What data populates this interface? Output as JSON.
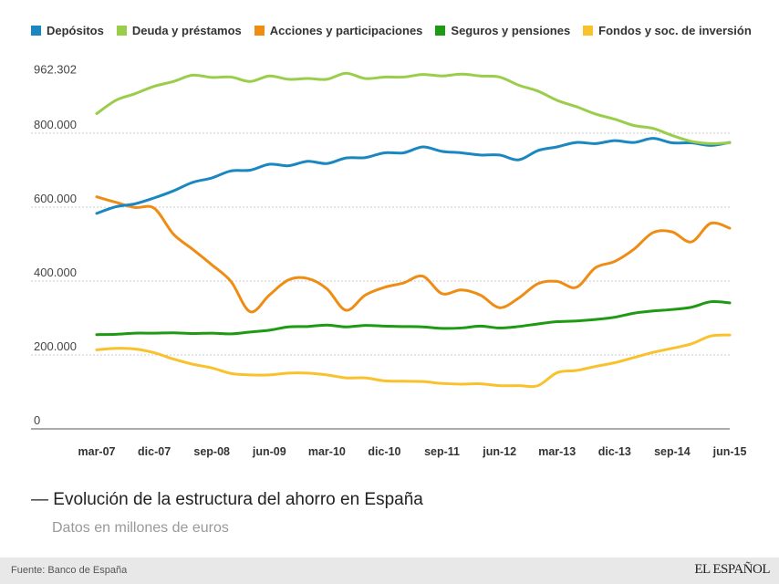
{
  "chart_data": {
    "type": "line",
    "title": "Evolución de la estructura del ahorro en España",
    "subtitle": "Datos en millones de euros",
    "source": "Fuente: Banco de España",
    "logo": "EL ESPAÑOL",
    "legend_position": "top",
    "grid": true,
    "ylim": [
      0,
      962302
    ],
    "y_ticks": [
      0,
      200000,
      400000,
      600000,
      800000,
      962302
    ],
    "y_tick_labels": [
      "0",
      "200.000",
      "400.000",
      "600.000",
      "800.000",
      "962.302"
    ],
    "x_tick_labels": [
      "mar-07",
      "dic-07",
      "sep-08",
      "jun-09",
      "mar-10",
      "dic-10",
      "sep-11",
      "jun-12",
      "mar-13",
      "dic-13",
      "sep-14",
      "jun-15"
    ],
    "x": [
      "mar-07",
      "jun-07",
      "sep-07",
      "dic-07",
      "mar-08",
      "jun-08",
      "sep-08",
      "dic-08",
      "mar-09",
      "jun-09",
      "sep-09",
      "dic-09",
      "mar-10",
      "jun-10",
      "sep-10",
      "dic-10",
      "mar-11",
      "jun-11",
      "sep-11",
      "dic-11",
      "mar-12",
      "jun-12",
      "sep-12",
      "dic-12",
      "mar-13",
      "jun-13",
      "sep-13",
      "dic-13",
      "mar-14",
      "jun-14",
      "sep-14",
      "dic-14",
      "mar-15",
      "jun-15"
    ],
    "series": [
      {
        "name": "Depósitos",
        "color": "#1a87c0",
        "values": [
          583000,
          601000,
          609000,
          625000,
          644000,
          667000,
          679000,
          698000,
          700000,
          716000,
          712000,
          724000,
          718000,
          733000,
          734000,
          747000,
          747000,
          763000,
          751000,
          747000,
          741000,
          741000,
          728000,
          753000,
          763000,
          775000,
          772000,
          780000,
          775000,
          786000,
          774000,
          774000,
          767000,
          775000
        ]
      },
      {
        "name": "Deuda y préstamos",
        "color": "#9acd4a",
        "values": [
          853000,
          889000,
          907000,
          927000,
          940000,
          957000,
          951000,
          952000,
          940000,
          955000,
          946000,
          948000,
          946000,
          962302,
          948000,
          952000,
          952000,
          959000,
          955000,
          960000,
          955000,
          952000,
          930000,
          914000,
          889000,
          872000,
          852000,
          838000,
          821000,
          813000,
          794000,
          778000,
          772000,
          774000
        ]
      },
      {
        "name": "Acciones y participaciones",
        "color": "#ef8c14",
        "values": [
          628000,
          613000,
          599000,
          597000,
          527000,
          486000,
          444000,
          399000,
          317000,
          362000,
          403000,
          407000,
          379000,
          321000,
          362000,
          383000,
          395000,
          413000,
          366000,
          376000,
          362000,
          328000,
          354000,
          393000,
          399000,
          383000,
          436000,
          453000,
          486000,
          531000,
          533000,
          506000,
          556000,
          543000
        ]
      },
      {
        "name": "Seguros y pensiones",
        "color": "#1e9a14",
        "values": [
          255000,
          256000,
          259000,
          259000,
          260000,
          258000,
          259000,
          257000,
          262000,
          267000,
          276000,
          277000,
          281000,
          276000,
          280000,
          278000,
          277000,
          276000,
          272000,
          273000,
          278000,
          273000,
          277000,
          284000,
          290000,
          292000,
          296000,
          302000,
          313000,
          319000,
          323000,
          329000,
          344000,
          341000
        ]
      },
      {
        "name": "Fondos y soc. de inversión",
        "color": "#f9c22c",
        "values": [
          214000,
          218000,
          216000,
          206000,
          189000,
          175000,
          165000,
          150000,
          146000,
          146000,
          151000,
          151000,
          146000,
          138000,
          138000,
          130000,
          129000,
          128000,
          123000,
          121000,
          122000,
          117000,
          117000,
          117000,
          152000,
          158000,
          169000,
          179000,
          193000,
          207000,
          218000,
          230000,
          251000,
          254000
        ]
      }
    ]
  }
}
